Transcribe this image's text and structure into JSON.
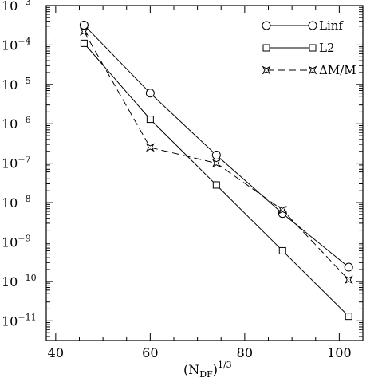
{
  "chart_data": {
    "type": "line",
    "x_label_base": "(N",
    "x_label_sub": "DF",
    "x_label_close": ")",
    "x_label_sup": "1/3",
    "ylabel": "",
    "xlim": [
      38,
      105
    ],
    "ylim_log10": [
      -11.5,
      -3
    ],
    "y_scale": "log",
    "x_ticks": [
      40,
      60,
      80,
      100
    ],
    "y_tick_exponents": [
      -3,
      -4,
      -5,
      -6,
      -7,
      -8,
      -9,
      -10,
      -11
    ],
    "y_tick_base": "10",
    "grid": false,
    "legend_position": "top-right",
    "series": [
      {
        "name": "Linf",
        "marker": "circle",
        "linestyle": "solid",
        "x": [
          46,
          60,
          74,
          88,
          102
        ],
        "y": [
          0.00032,
          6e-06,
          1.6e-07,
          5.3e-09,
          2.3e-10
        ]
      },
      {
        "name": "L2",
        "marker": "square",
        "linestyle": "solid",
        "x": [
          46,
          60,
          74,
          88,
          102
        ],
        "y": [
          0.00011,
          1.3e-06,
          2.8e-08,
          6e-10,
          1.3e-11
        ]
      },
      {
        "name": "ΔM/M",
        "marker": "star",
        "linestyle": "dashed",
        "x": [
          46,
          60,
          74,
          88,
          102
        ],
        "y": [
          0.00022,
          2.5e-07,
          1e-07,
          6.5e-09,
          1.1e-10
        ]
      }
    ]
  }
}
